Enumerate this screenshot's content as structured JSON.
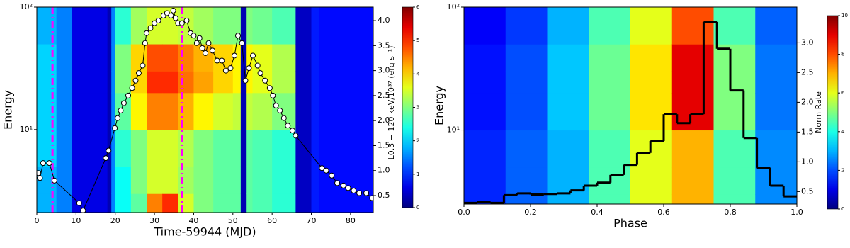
{
  "chart_data": [
    {
      "type": "heatmap",
      "colormap": "jet",
      "xlabel": "Time-59944 (MJD)",
      "ylabel": "Energy",
      "y2label": "L0.3 − 120 keV/10³⁷ (erg s⁻¹)",
      "xlim": [
        0,
        85.8
      ],
      "xticks": [
        0,
        10,
        20,
        30,
        40,
        50,
        60,
        70,
        80
      ],
      "ylim": [
        2.1,
        100
      ],
      "yscale": "log",
      "yticks": [
        {
          "value": 10,
          "label": "10¹"
        },
        {
          "value": 100,
          "label": "10²"
        }
      ],
      "y2lim": [
        0.16,
        4.27
      ],
      "y2ticks": [
        {
          "value": 0.5,
          "label": "0.5"
        },
        {
          "value": 1,
          "label": "1.0"
        },
        {
          "value": 1.5,
          "label": "1.5"
        },
        {
          "value": 2,
          "label": "2.0"
        },
        {
          "value": 2.5,
          "label": "2.5"
        },
        {
          "value": 3,
          "label": "3.0"
        },
        {
          "value": 3.5,
          "label": "3.5"
        },
        {
          "value": 4,
          "label": "4.0"
        }
      ],
      "clim": [
        0,
        6
      ],
      "cticks": [
        0,
        1,
        2,
        3,
        4,
        5,
        6
      ],
      "x_edges": [
        0,
        5,
        9,
        18,
        19,
        20,
        24,
        28,
        32,
        36,
        40,
        45,
        50,
        52,
        53.5,
        55,
        60,
        66,
        70,
        72,
        85.8
      ],
      "y_edges": [
        2.1,
        3,
        5,
        10,
        20,
        30,
        50,
        100
      ],
      "z": [
        [
          1.8,
          1.8,
          2,
          2,
          2,
          2,
          1.8
        ],
        [
          1.5,
          1.5,
          1.5,
          1.5,
          1.5,
          1.5,
          1.5
        ],
        [
          0.6,
          0.6,
          0.6,
          0.6,
          0.6,
          0.6,
          0.6
        ],
        [
          0.3,
          0.3,
          0.3,
          0.3,
          0.3,
          0.3,
          0.3
        ],
        [
          1.5,
          1.5,
          1.5,
          1.5,
          1.5,
          1.5,
          1.5
        ],
        [
          2.3,
          2.3,
          2.5,
          2.8,
          3,
          3,
          2.5
        ],
        [
          2.8,
          3,
          3,
          3.8,
          4,
          4,
          3.2
        ],
        [
          4.5,
          3.5,
          3.5,
          4.5,
          5,
          4.8,
          3.5
        ],
        [
          5,
          3.5,
          3.5,
          4.5,
          5,
          4.8,
          3.5
        ],
        [
          3.5,
          3.2,
          3.3,
          4.2,
          4.6,
          4.5,
          3.4
        ],
        [
          3,
          3,
          3,
          3.8,
          4.3,
          4.2,
          3.2
        ],
        [
          2.8,
          2.8,
          2.8,
          3.5,
          4,
          4,
          3
        ],
        [
          2.8,
          2.8,
          2.8,
          3.4,
          3.8,
          3.8,
          3
        ],
        [
          0.3,
          0.3,
          0.3,
          0.3,
          0.3,
          0.3,
          0.3
        ],
        [
          2.8,
          2.8,
          2.8,
          3.4,
          3.8,
          3.8,
          3
        ],
        [
          2.7,
          2.7,
          2.7,
          3.3,
          3.6,
          3.6,
          2.9
        ],
        [
          2.5,
          2.5,
          2.5,
          3,
          3.3,
          3.3,
          2.7
        ],
        [
          0.4,
          0.4,
          0.4,
          0.4,
          0.4,
          0.4,
          0.4
        ],
        [
          0.9,
          0.9,
          0.9,
          0.9,
          0.9,
          0.9,
          0.9
        ],
        [
          0.8,
          0.8,
          0.8,
          0.8,
          0.8,
          0.8,
          0.8
        ]
      ],
      "vlines": [
        4,
        37
      ],
      "vline_color": "#ff00ff",
      "overlay": {
        "type": "line",
        "color": "#000000",
        "marker_color": "#ffffff",
        "axis": "y2",
        "x": [
          0.4,
          0.8,
          1.6,
          3.2,
          4.5,
          10.8,
          11.8,
          17.6,
          18.3,
          19.9,
          20.6,
          21.4,
          22.2,
          23.3,
          24.3,
          25.2,
          26.0,
          27.0,
          27.6,
          28.0,
          29.0,
          30.0,
          31.0,
          32.3,
          33.2,
          34.2,
          34.8,
          35.4,
          36.0,
          37.0,
          38.2,
          39.2,
          40.0,
          40.8,
          41.5,
          42.2,
          43.0,
          43.8,
          44.8,
          46.0,
          47.2,
          48.2,
          49.4,
          50.4,
          51.3,
          52.3,
          53.2,
          54.1,
          55.1,
          56.3,
          57.0,
          58.2,
          59.4,
          60.2,
          61.0,
          62.0,
          63.0,
          64.0,
          65.2,
          66.0,
          72.7,
          73.8,
          75.2,
          76.6,
          78.2,
          79.4,
          80.8,
          82.2,
          84.0,
          85.5
        ],
        "values": [
          0.95,
          0.85,
          1.15,
          1.15,
          0.8,
          0.35,
          0.2,
          1.25,
          1.4,
          1.85,
          2.05,
          2.2,
          2.35,
          2.5,
          2.65,
          2.8,
          2.95,
          3.1,
          3.55,
          3.75,
          3.85,
          3.95,
          4.0,
          4.1,
          4.15,
          4.1,
          4.2,
          4.05,
          3.95,
          3.95,
          4.0,
          3.75,
          3.7,
          3.55,
          3.65,
          3.45,
          3.35,
          3.55,
          3.4,
          3.2,
          3.2,
          3.0,
          3.05,
          3.3,
          3.7,
          3.55,
          2.8,
          3.05,
          3.3,
          3.1,
          2.95,
          2.8,
          2.65,
          2.5,
          2.3,
          2.2,
          2.05,
          1.9,
          1.8,
          1.7,
          1.05,
          1.0,
          0.9,
          0.75,
          0.7,
          0.65,
          0.6,
          0.55,
          0.55,
          0.45
        ]
      }
    },
    {
      "type": "heatmap",
      "colormap": "jet",
      "xlabel": "Phase",
      "ylabel": "Energy",
      "clabel": "Norm Rate",
      "xlim": [
        0,
        1
      ],
      "xticks": [
        {
          "value": 0,
          "label": "0.0"
        },
        {
          "value": 0.2,
          "label": "0.2"
        },
        {
          "value": 0.4,
          "label": "0.4"
        },
        {
          "value": 0.6,
          "label": "0.6"
        },
        {
          "value": 0.8,
          "label": "0.8"
        },
        {
          "value": 1,
          "label": "1.0"
        }
      ],
      "ylim": [
        2.5,
        100
      ],
      "yscale": "log",
      "yticks": [
        {
          "value": 10,
          "label": "10¹"
        },
        {
          "value": 100,
          "label": "10²"
        }
      ],
      "y2lim": [
        0.29,
        3.6
      ],
      "y2ticks": [
        {
          "value": 0.5,
          "label": "0.5"
        },
        {
          "value": 1,
          "label": "1.0"
        },
        {
          "value": 1.5,
          "label": "1.5"
        },
        {
          "value": 2,
          "label": "2.0"
        },
        {
          "value": 2.5,
          "label": "2.5"
        },
        {
          "value": 3,
          "label": "3.0"
        }
      ],
      "clim": [
        0,
        10
      ],
      "cticks": [
        0,
        2,
        4,
        6,
        8,
        10
      ],
      "x_edges": [
        0,
        0.125,
        0.25,
        0.375,
        0.5,
        0.625,
        0.75,
        0.875,
        1
      ],
      "y_edges": [
        2.5,
        3,
        5,
        10,
        20,
        30,
        50,
        100
      ],
      "z": [
        [
          1.6,
          1.6,
          1.6,
          1.4,
          1.4,
          1.4,
          1.2
        ],
        [
          2.2,
          2.2,
          2.2,
          2,
          2,
          2,
          1.8
        ],
        [
          3,
          3,
          3,
          3.2,
          3.2,
          3.2,
          3
        ],
        [
          4.5,
          4.5,
          4.5,
          4.8,
          4.8,
          4.8,
          4.5
        ],
        [
          6,
          6,
          6,
          6.5,
          6.5,
          6.5,
          6
        ],
        [
          7,
          7,
          7,
          9,
          9,
          9,
          8
        ],
        [
          4.5,
          4.5,
          4.5,
          5,
          5,
          5,
          4.5
        ],
        [
          2.6,
          2.6,
          2.6,
          2.4,
          2.4,
          2.4,
          2.2
        ]
      ],
      "overlay": {
        "type": "step",
        "color": "#000000",
        "axis": "y2",
        "bins": [
          0,
          0.04,
          0.08,
          0.12,
          0.16,
          0.2,
          0.24,
          0.28,
          0.32,
          0.36,
          0.4,
          0.44,
          0.48,
          0.52,
          0.56,
          0.6,
          0.64,
          0.68,
          0.72,
          0.76,
          0.8,
          0.84,
          0.88,
          0.92,
          0.96,
          1
        ],
        "values": [
          0.31,
          0.32,
          0.31,
          0.44,
          0.47,
          0.45,
          0.46,
          0.47,
          0.52,
          0.6,
          0.65,
          0.78,
          0.95,
          1.15,
          1.35,
          1.8,
          1.65,
          1.8,
          3.35,
          2.9,
          2.2,
          1.4,
          0.9,
          0.6,
          0.42
        ]
      }
    }
  ]
}
